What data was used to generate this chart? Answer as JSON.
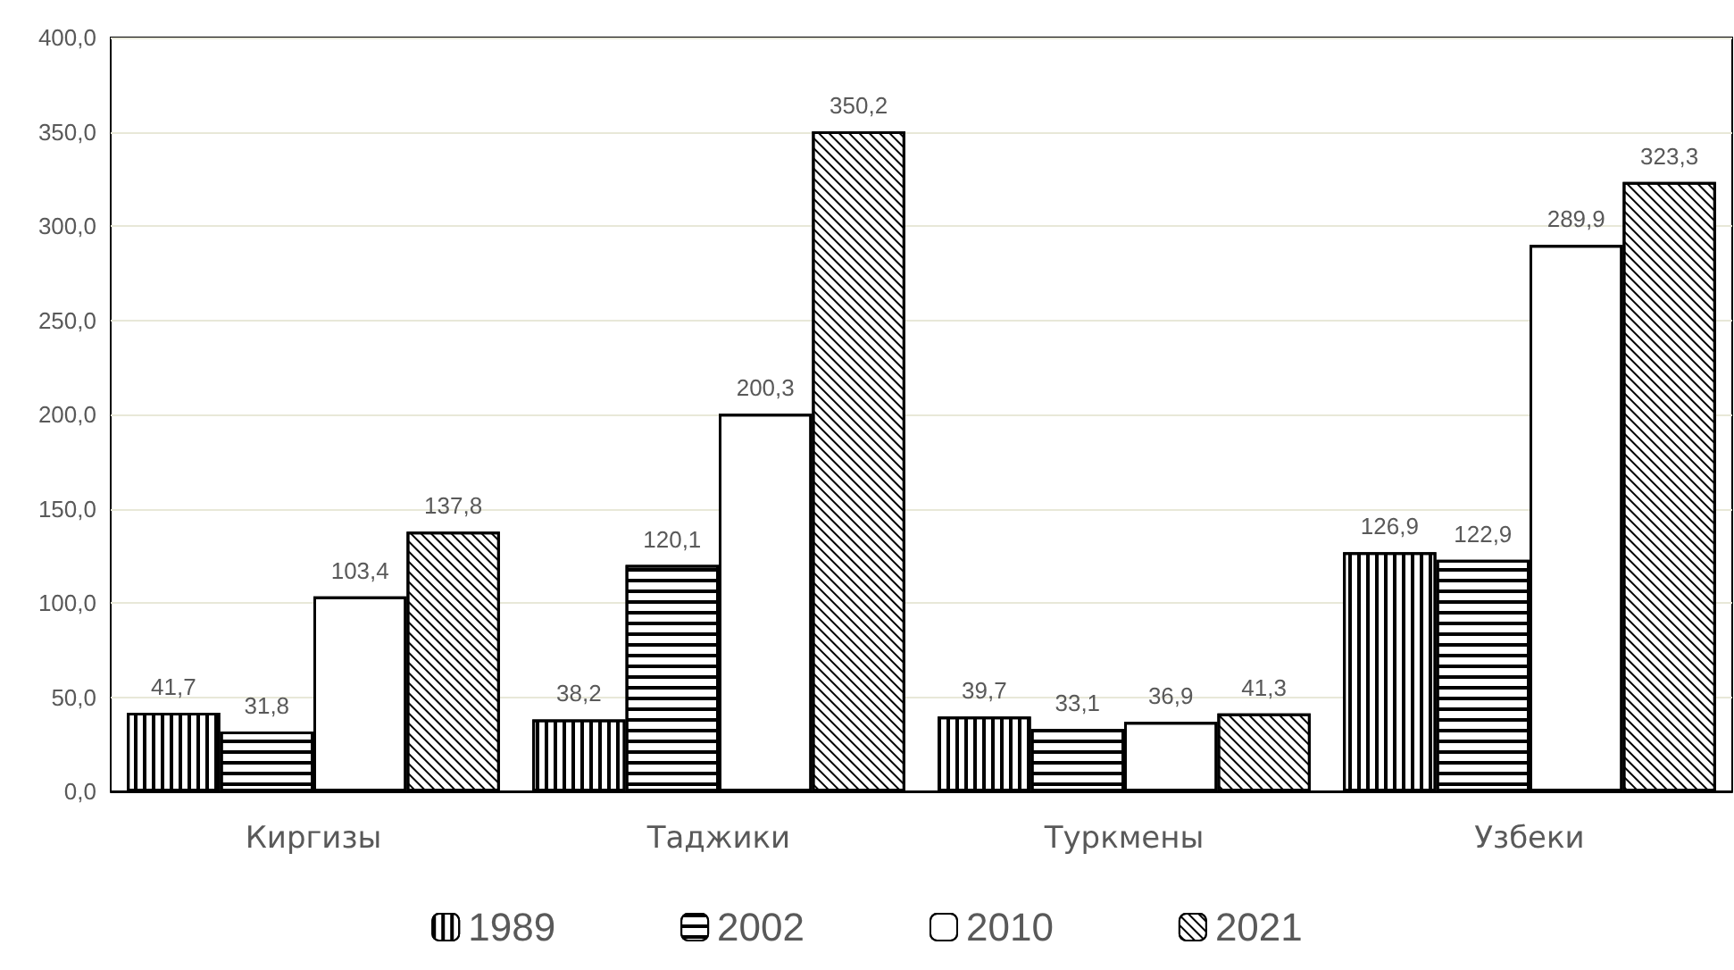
{
  "chart_data": {
    "type": "bar",
    "categories": [
      "Киргизы",
      "Таджики",
      "Туркмены",
      "Узбеки"
    ],
    "series": [
      {
        "name": "1989",
        "values": [
          41.7,
          38.2,
          39.7,
          126.9
        ],
        "value_labels": [
          "41,7",
          "38,2",
          "39,7",
          "126,9"
        ]
      },
      {
        "name": "2002",
        "values": [
          31.8,
          120.1,
          33.1,
          122.9
        ],
        "value_labels": [
          "31,8",
          "120,1",
          "33,1",
          "122,9"
        ]
      },
      {
        "name": "2010",
        "values": [
          103.4,
          200.3,
          36.9,
          289.9
        ],
        "value_labels": [
          "103,4",
          "200,3",
          "36,9",
          "289,9"
        ]
      },
      {
        "name": "2021",
        "values": [
          137.8,
          350.2,
          41.3,
          323.3
        ],
        "value_labels": [
          "137,8",
          "350,2",
          "41,3",
          "323,3"
        ]
      }
    ],
    "ylim": [
      0,
      400
    ],
    "yticks": [
      {
        "value": 0,
        "label": "0,0"
      },
      {
        "value": 50,
        "label": "50,0"
      },
      {
        "value": 100,
        "label": "100,0"
      },
      {
        "value": 150,
        "label": "150,0"
      },
      {
        "value": 200,
        "label": "200,0"
      },
      {
        "value": 250,
        "label": "250,0"
      },
      {
        "value": 300,
        "label": "300,0"
      },
      {
        "value": 350,
        "label": "350,0"
      },
      {
        "value": 400,
        "label": "400,0"
      }
    ],
    "grid": "y",
    "legend": "bottom"
  }
}
